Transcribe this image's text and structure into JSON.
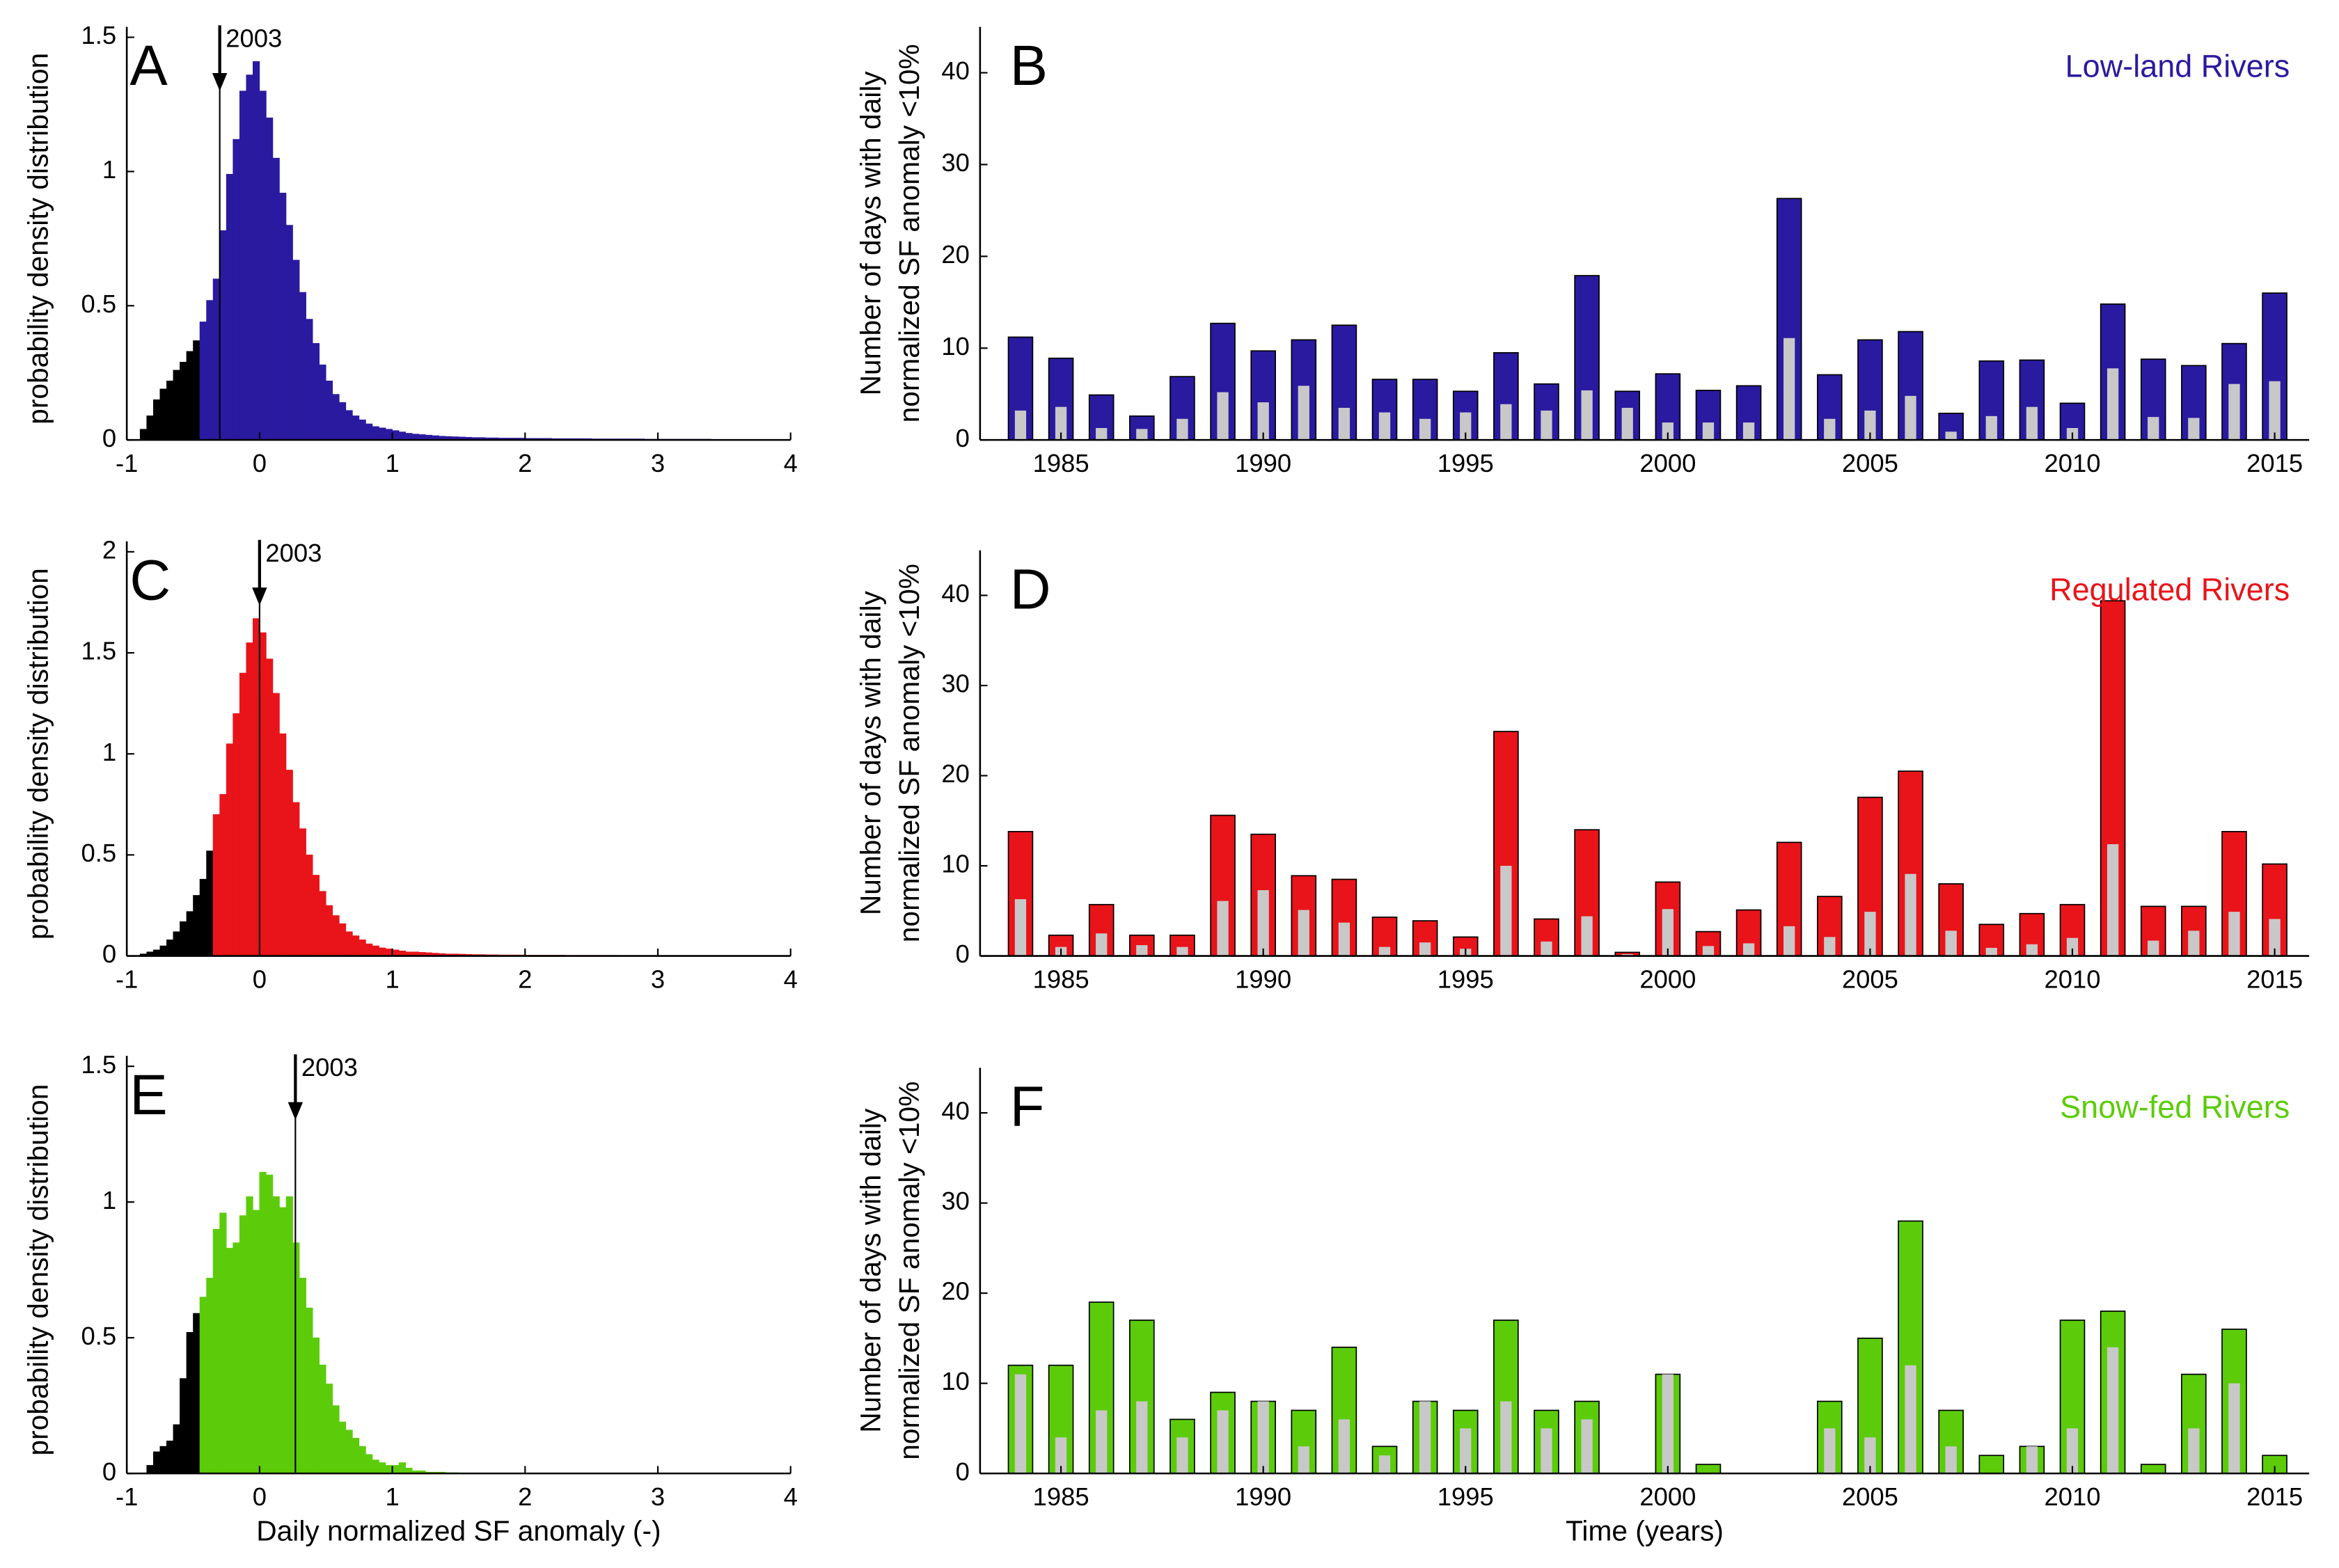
{
  "chart_data": [
    {
      "type": "histogram",
      "label": "A",
      "ylabel": "probability density distribution",
      "xlim": [
        -1,
        4
      ],
      "xticks": [
        -1,
        0,
        1,
        2,
        3,
        4
      ],
      "ylim": [
        0,
        1.5
      ],
      "yticks": [
        0,
        0.5,
        1,
        1.5
      ],
      "color": "#2a1aa0",
      "tail_color": "#000000",
      "tail_bins": 9,
      "annotation": {
        "text": "2003",
        "x": -0.3
      },
      "bins": [
        -0.9,
        -0.85,
        -0.8,
        -0.75,
        -0.7,
        -0.65,
        -0.6,
        -0.55,
        -0.5,
        -0.45,
        -0.4,
        -0.35,
        -0.3,
        -0.25,
        -0.2,
        -0.15,
        -0.1,
        -0.05,
        0,
        0.05,
        0.1,
        0.15,
        0.2,
        0.25,
        0.3,
        0.35,
        0.4,
        0.45,
        0.5,
        0.55,
        0.6,
        0.65,
        0.7,
        0.75,
        0.8,
        0.85,
        0.9,
        0.95,
        1,
        1.05,
        1.1,
        1.15,
        1.2,
        1.25,
        1.3,
        1.35,
        1.4,
        1.45,
        1.5,
        1.55,
        1.6,
        1.7,
        1.8,
        1.9,
        2,
        2.1,
        2.2,
        2.3,
        2.4,
        2.5,
        2.6,
        2.7,
        2.8,
        2.9,
        3,
        3.1,
        3.2,
        3.3,
        3.4,
        3.5,
        3.6,
        3.7,
        3.8,
        3.9,
        4
      ],
      "values": [
        0.04,
        0.09,
        0.15,
        0.19,
        0.22,
        0.26,
        0.29,
        0.33,
        0.37,
        0.44,
        0.52,
        0.6,
        0.78,
        0.99,
        1.12,
        1.3,
        1.36,
        1.41,
        1.3,
        1.2,
        1.05,
        0.92,
        0.8,
        0.67,
        0.55,
        0.45,
        0.36,
        0.28,
        0.22,
        0.17,
        0.14,
        0.11,
        0.09,
        0.075,
        0.06,
        0.05,
        0.045,
        0.04,
        0.035,
        0.03,
        0.025,
        0.022,
        0.02,
        0.018,
        0.016,
        0.014,
        0.013,
        0.012,
        0.011,
        0.01,
        0.009,
        0.008,
        0.007,
        0.007,
        0.006,
        0.006,
        0.005,
        0.005,
        0.005,
        0.004,
        0.004,
        0.004,
        0.004,
        0.003,
        0.003,
        0.003,
        0.003,
        0.003,
        0.002,
        0.002,
        0.002,
        0.002,
        0.002,
        0.002
      ]
    },
    {
      "type": "bar",
      "label": "B",
      "title": "Low-land Rivers",
      "ylabel": [
        "Number of days with daily",
        "normalized SF anomaly <10%"
      ],
      "xlim": [
        1983,
        2016
      ],
      "xticks": [
        1985,
        1990,
        1995,
        2000,
        2005,
        2010,
        2015
      ],
      "ylim": [
        0,
        45
      ],
      "yticks": [
        0,
        10,
        20,
        30,
        40
      ],
      "color": "#2a1aa0",
      "sub_color": "#c8c8c8",
      "x": [
        1984,
        1985,
        1986,
        1987,
        1988,
        1989,
        1990,
        1991,
        1992,
        1993,
        1994,
        1995,
        1996,
        1997,
        1998,
        1999,
        2000,
        2001,
        2002,
        2003,
        2004,
        2005,
        2006,
        2007,
        2008,
        2009,
        2010,
        2011,
        2012,
        2013,
        2014,
        2015
      ],
      "values": [
        11.2,
        8.9,
        4.9,
        2.6,
        6.9,
        12.7,
        9.7,
        10.9,
        12.5,
        6.6,
        6.6,
        5.3,
        9.5,
        6.1,
        17.9,
        5.3,
        7.2,
        5.4,
        5.9,
        26.3,
        7.1,
        10.9,
        11.8,
        2.9,
        8.6,
        8.7,
        4.0,
        14.8,
        8.8,
        8.1,
        10.5,
        16.0
      ],
      "sub_values": [
        3.2,
        3.6,
        1.3,
        1.2,
        2.3,
        5.2,
        4.1,
        5.9,
        3.5,
        3.0,
        2.3,
        3.0,
        3.9,
        3.2,
        5.4,
        3.5,
        1.9,
        1.9,
        1.9,
        11.1,
        2.3,
        3.2,
        4.8,
        0.9,
        2.6,
        3.6,
        1.3,
        7.8,
        2.5,
        2.4,
        6.1,
        6.4
      ]
    },
    {
      "type": "histogram",
      "label": "C",
      "ylabel": "probability density distribution",
      "xlim": [
        -1,
        4
      ],
      "xticks": [
        -1,
        0,
        1,
        2,
        3,
        4
      ],
      "ylim": [
        0,
        2
      ],
      "yticks": [
        0,
        0.5,
        1,
        1.5,
        2
      ],
      "color": "#e8141a",
      "tail_color": "#000000",
      "tail_bins": 11,
      "annotation": {
        "text": "2003",
        "x": 0
      },
      "bins": [
        -0.9,
        -0.85,
        -0.8,
        -0.75,
        -0.7,
        -0.65,
        -0.6,
        -0.55,
        -0.5,
        -0.45,
        -0.4,
        -0.35,
        -0.3,
        -0.25,
        -0.2,
        -0.15,
        -0.1,
        -0.05,
        0,
        0.05,
        0.1,
        0.15,
        0.2,
        0.25,
        0.3,
        0.35,
        0.4,
        0.45,
        0.5,
        0.55,
        0.6,
        0.65,
        0.7,
        0.75,
        0.8,
        0.85,
        0.9,
        0.95,
        1,
        1.05,
        1.1,
        1.15,
        1.2,
        1.25,
        1.3,
        1.35,
        1.4,
        1.45,
        1.5,
        1.55,
        1.6,
        1.7,
        1.8,
        1.9,
        2,
        2.1,
        2.2,
        2.3,
        2.4,
        2.5,
        2.6,
        2.7,
        2.8,
        2.9,
        3,
        3.1,
        3.2,
        3.3,
        3.4,
        3.5,
        3.6,
        3.7,
        3.8,
        3.9,
        4
      ],
      "values": [
        0.01,
        0.02,
        0.03,
        0.05,
        0.08,
        0.12,
        0.17,
        0.22,
        0.3,
        0.38,
        0.52,
        0.7,
        0.8,
        1.05,
        1.2,
        1.4,
        1.55,
        1.67,
        1.6,
        1.47,
        1.3,
        1.1,
        0.92,
        0.76,
        0.63,
        0.5,
        0.4,
        0.32,
        0.25,
        0.2,
        0.16,
        0.12,
        0.1,
        0.08,
        0.06,
        0.05,
        0.04,
        0.035,
        0.03,
        0.025,
        0.02,
        0.02,
        0.018,
        0.016,
        0.014,
        0.012,
        0.01,
        0.01,
        0.009,
        0.008,
        0.007,
        0.006,
        0.005,
        0.005,
        0.004,
        0.004,
        0.004,
        0.003,
        0.003,
        0.003,
        0.003,
        0.002,
        0.002,
        0.002,
        0.002,
        0.002,
        0.002,
        0.001,
        0.001,
        0.001,
        0.001,
        0.001,
        0.001,
        0.001
      ]
    },
    {
      "type": "bar",
      "label": "D",
      "title": "Regulated Rivers",
      "ylabel": [
        "Number of days with daily",
        "normalized SF anomaly <10%"
      ],
      "xlim": [
        1983,
        2016
      ],
      "xticks": [
        1985,
        1990,
        1995,
        2000,
        2005,
        2010,
        2015
      ],
      "ylim": [
        0,
        45
      ],
      "yticks": [
        0,
        10,
        20,
        30,
        40
      ],
      "color": "#e8141a",
      "sub_color": "#c8c8c8",
      "x": [
        1984,
        1985,
        1986,
        1987,
        1988,
        1989,
        1990,
        1991,
        1992,
        1993,
        1994,
        1995,
        1996,
        1997,
        1998,
        1999,
        2000,
        2001,
        2002,
        2003,
        2004,
        2005,
        2006,
        2007,
        2008,
        2009,
        2010,
        2011,
        2012,
        2013,
        2014,
        2015
      ],
      "values": [
        13.8,
        2.3,
        5.7,
        2.3,
        2.3,
        15.6,
        13.5,
        8.9,
        8.5,
        4.3,
        3.9,
        2.1,
        24.9,
        4.1,
        14.0,
        0.4,
        8.2,
        2.7,
        5.1,
        12.6,
        6.6,
        17.6,
        20.5,
        8.0,
        3.5,
        4.7,
        5.7,
        39.4,
        5.5,
        5.5,
        13.8,
        10.2
      ],
      "sub_values": [
        6.3,
        1.0,
        2.5,
        1.2,
        1.0,
        6.1,
        7.3,
        5.1,
        3.7,
        1.0,
        1.5,
        0.8,
        10.0,
        1.6,
        4.4,
        0.2,
        5.2,
        1.1,
        1.4,
        3.3,
        2.1,
        4.9,
        9.1,
        2.8,
        0.9,
        1.3,
        2.0,
        12.4,
        1.7,
        2.8,
        4.9,
        4.1
      ]
    },
    {
      "type": "histogram",
      "label": "E",
      "ylabel": "probability density distribution",
      "xlabel": "Daily normalized SF anomaly (-)",
      "xlim": [
        -1,
        4
      ],
      "xticks": [
        -1,
        0,
        1,
        2,
        3,
        4
      ],
      "ylim": [
        0,
        1.5
      ],
      "yticks": [
        0,
        0.5,
        1,
        1.5
      ],
      "color": "#5ccc0a",
      "tail_color": "#000000",
      "tail_bins": 9,
      "annotation": {
        "text": "2003",
        "x": 0.27
      },
      "bins": [
        -0.9,
        -0.85,
        -0.8,
        -0.75,
        -0.7,
        -0.65,
        -0.6,
        -0.55,
        -0.5,
        -0.45,
        -0.4,
        -0.35,
        -0.3,
        -0.25,
        -0.2,
        -0.15,
        -0.1,
        -0.05,
        0,
        0.05,
        0.1,
        0.15,
        0.2,
        0.25,
        0.3,
        0.35,
        0.4,
        0.45,
        0.5,
        0.55,
        0.6,
        0.65,
        0.7,
        0.75,
        0.8,
        0.85,
        0.9,
        0.95,
        1,
        1.05,
        1.1,
        1.15,
        1.2,
        1.25,
        1.3,
        1.35,
        1.4,
        1.45,
        1.5,
        1.55,
        1.6
      ],
      "values": [
        0,
        0.03,
        0.08,
        0.1,
        0.12,
        0.18,
        0.35,
        0.52,
        0.59,
        0.65,
        0.72,
        0.9,
        0.96,
        0.83,
        0.85,
        0.95,
        1.02,
        0.97,
        1.11,
        1.1,
        1.02,
        0.98,
        1.02,
        0.85,
        0.72,
        0.61,
        0.5,
        0.4,
        0.33,
        0.25,
        0.19,
        0.16,
        0.13,
        0.1,
        0.07,
        0.05,
        0.04,
        0.03,
        0.03,
        0.04,
        0.02,
        0.01,
        0.01,
        0.005,
        0.005,
        0.005,
        0.003,
        0.003,
        0.002,
        0.002
      ]
    },
    {
      "type": "bar",
      "label": "F",
      "title": "Snow-fed Rivers",
      "ylabel": [
        "Number of days with daily",
        "normalized SF anomaly <10%"
      ],
      "xlabel": "Time (years)",
      "xlim": [
        1983,
        2016
      ],
      "xticks": [
        1985,
        1990,
        1995,
        2000,
        2005,
        2010,
        2015
      ],
      "ylim": [
        0,
        45
      ],
      "yticks": [
        0,
        10,
        20,
        30,
        40
      ],
      "color": "#5ccc0a",
      "sub_color": "#c8c8c8",
      "x": [
        1984,
        1985,
        1986,
        1987,
        1988,
        1989,
        1990,
        1991,
        1992,
        1993,
        1994,
        1995,
        1996,
        1997,
        1998,
        1999,
        2000,
        2001,
        2002,
        2003,
        2004,
        2005,
        2006,
        2007,
        2008,
        2009,
        2010,
        2011,
        2012,
        2013,
        2014,
        2015
      ],
      "values": [
        12,
        12,
        19,
        17,
        6,
        9,
        8,
        7,
        14,
        3,
        8,
        7,
        17,
        7,
        8,
        0,
        11,
        1,
        0,
        0,
        8,
        15,
        28,
        7,
        2,
        3,
        17,
        18,
        1,
        11,
        16,
        2
      ],
      "sub_values": [
        11,
        4,
        7,
        8,
        4,
        7,
        8,
        3,
        6,
        2,
        8,
        5,
        8,
        5,
        6,
        0,
        11,
        0,
        0,
        0,
        5,
        4,
        12,
        3,
        0,
        3,
        5,
        14,
        0,
        5,
        10,
        0
      ]
    }
  ]
}
